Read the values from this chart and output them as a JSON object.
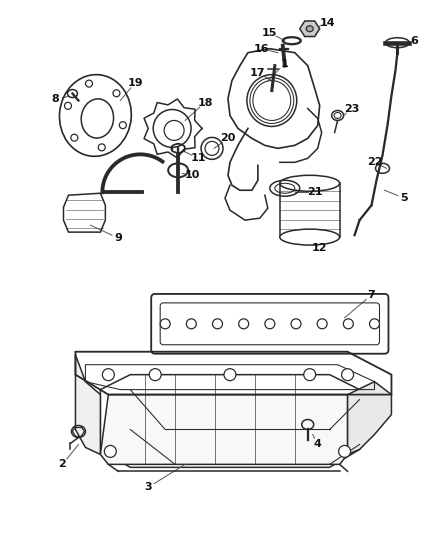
{
  "bg_color": "#ffffff",
  "line_color": "#2a2a2a",
  "label_color": "#111111",
  "figsize": [
    4.38,
    5.33
  ],
  "dpi": 100
}
